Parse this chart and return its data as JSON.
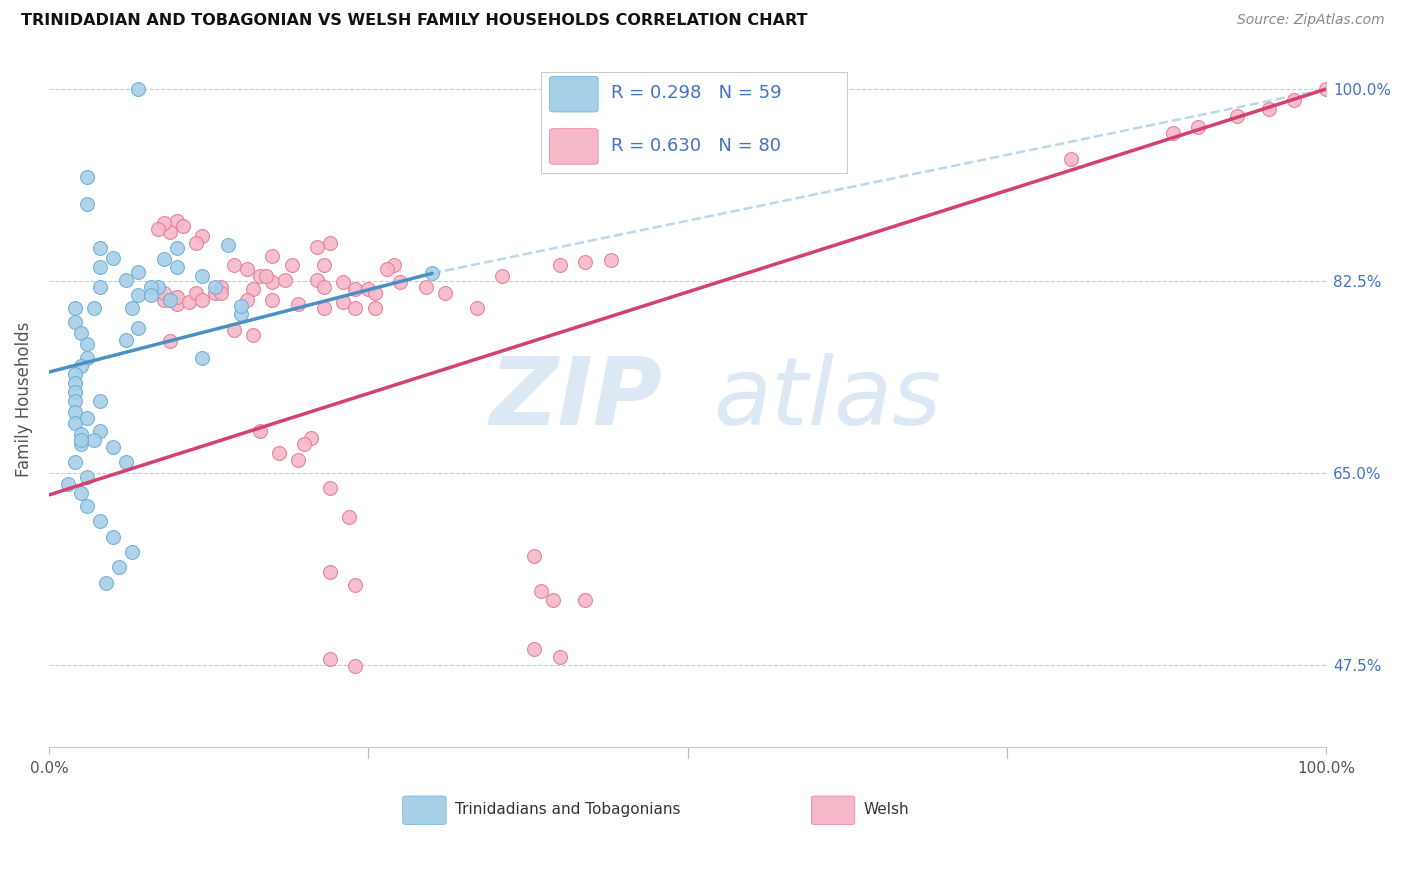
{
  "title": "TRINIDADIAN AND TOBAGONIAN VS WELSH FAMILY HOUSEHOLDS CORRELATION CHART",
  "source": "Source: ZipAtlas.com",
  "ylabel": "Family Households",
  "y_tick_values": [
    0.475,
    0.65,
    0.825,
    1.0
  ],
  "y_tick_labels": [
    "47.5%",
    "65.0%",
    "82.5%",
    "100.0%"
  ],
  "x_tick_labels": [
    "0.0%",
    "100.0%"
  ],
  "x_lim": [
    0.0,
    1.0
  ],
  "y_lim": [
    0.4,
    1.035
  ],
  "legend_r_blue": "R = 0.298",
  "legend_n_blue": "N = 59",
  "legend_r_pink": "R = 0.630",
  "legend_n_pink": "N = 80",
  "color_blue": "#a8cfe8",
  "color_blue_edge": "#6aaed6",
  "color_pink": "#f4b8c8",
  "color_pink_edge": "#e8799a",
  "color_blue_line": "#4a90c4",
  "color_pink_line": "#d44070",
  "color_dashed": "#a8cfe8",
  "blue_scatter_x": [
    0.1,
    0.15,
    0.12,
    0.03,
    0.03,
    0.04,
    0.04,
    0.04,
    0.035,
    0.02,
    0.02,
    0.025,
    0.03,
    0.03,
    0.025,
    0.02,
    0.02,
    0.02,
    0.02,
    0.02,
    0.02,
    0.025,
    0.025,
    0.07,
    0.07,
    0.065,
    0.07,
    0.06,
    0.09,
    0.085,
    0.095,
    0.13,
    0.14,
    0.15,
    0.1,
    0.12,
    0.08,
    0.06,
    0.08,
    0.05,
    0.04,
    0.03,
    0.04,
    0.05,
    0.06,
    0.03,
    0.025,
    0.03,
    0.04,
    0.05,
    0.065,
    0.055,
    0.045,
    0.035,
    0.025,
    0.02,
    0.015,
    0.3,
    0.07
  ],
  "blue_scatter_y": [
    0.855,
    0.795,
    0.755,
    0.92,
    0.895,
    0.855,
    0.838,
    0.82,
    0.8,
    0.8,
    0.788,
    0.778,
    0.768,
    0.755,
    0.748,
    0.74,
    0.732,
    0.724,
    0.716,
    0.706,
    0.696,
    0.686,
    0.676,
    0.833,
    0.812,
    0.8,
    0.782,
    0.771,
    0.845,
    0.82,
    0.808,
    0.82,
    0.858,
    0.802,
    0.838,
    0.83,
    0.82,
    0.826,
    0.812,
    0.846,
    0.716,
    0.7,
    0.688,
    0.674,
    0.66,
    0.646,
    0.632,
    0.62,
    0.606,
    0.592,
    0.578,
    0.564,
    0.55,
    0.68,
    0.68,
    0.66,
    0.64,
    0.832,
    1.0
  ],
  "pink_scatter_x": [
    0.1,
    0.105,
    0.095,
    0.12,
    0.115,
    0.09,
    0.085,
    0.22,
    0.21,
    0.135,
    0.145,
    0.155,
    0.165,
    0.175,
    0.13,
    0.09,
    0.09,
    0.095,
    0.1,
    0.1,
    0.11,
    0.115,
    0.12,
    0.27,
    0.265,
    0.16,
    0.175,
    0.185,
    0.095,
    0.21,
    0.215,
    0.23,
    0.24,
    0.25,
    0.255,
    0.135,
    0.155,
    0.175,
    0.195,
    0.215,
    0.23,
    0.255,
    0.275,
    0.295,
    0.31,
    0.335,
    0.355,
    0.17,
    0.19,
    0.215,
    0.145,
    0.16,
    0.24,
    0.4,
    0.42,
    0.44,
    0.165,
    0.205,
    0.2,
    0.18,
    0.195,
    0.22,
    0.235,
    0.8,
    0.88,
    0.9,
    0.93,
    0.955,
    0.975,
    1.0,
    0.22,
    0.24,
    0.38,
    0.385,
    0.395,
    0.42,
    0.38,
    0.4,
    0.22,
    0.24
  ],
  "pink_scatter_y": [
    0.88,
    0.875,
    0.87,
    0.866,
    0.86,
    0.878,
    0.872,
    0.86,
    0.856,
    0.82,
    0.84,
    0.836,
    0.83,
    0.848,
    0.814,
    0.808,
    0.814,
    0.808,
    0.804,
    0.81,
    0.806,
    0.814,
    0.808,
    0.84,
    0.836,
    0.818,
    0.824,
    0.826,
    0.77,
    0.826,
    0.82,
    0.824,
    0.818,
    0.818,
    0.814,
    0.814,
    0.808,
    0.808,
    0.804,
    0.8,
    0.806,
    0.8,
    0.824,
    0.82,
    0.814,
    0.8,
    0.83,
    0.83,
    0.84,
    0.84,
    0.78,
    0.776,
    0.8,
    0.84,
    0.842,
    0.844,
    0.688,
    0.682,
    0.676,
    0.668,
    0.662,
    0.636,
    0.61,
    0.936,
    0.96,
    0.965,
    0.975,
    0.982,
    0.99,
    1.0,
    0.56,
    0.548,
    0.574,
    0.542,
    0.534,
    0.534,
    0.49,
    0.482,
    0.48,
    0.474
  ],
  "blue_line_x": [
    0.0,
    0.3
  ],
  "blue_line_y": [
    0.742,
    0.832
  ],
  "pink_line_x": [
    0.0,
    1.0
  ],
  "pink_line_y": [
    0.63,
    1.0
  ],
  "dashed_line_x": [
    0.3,
    1.0
  ],
  "dashed_line_y": [
    0.832,
    1.0
  ]
}
